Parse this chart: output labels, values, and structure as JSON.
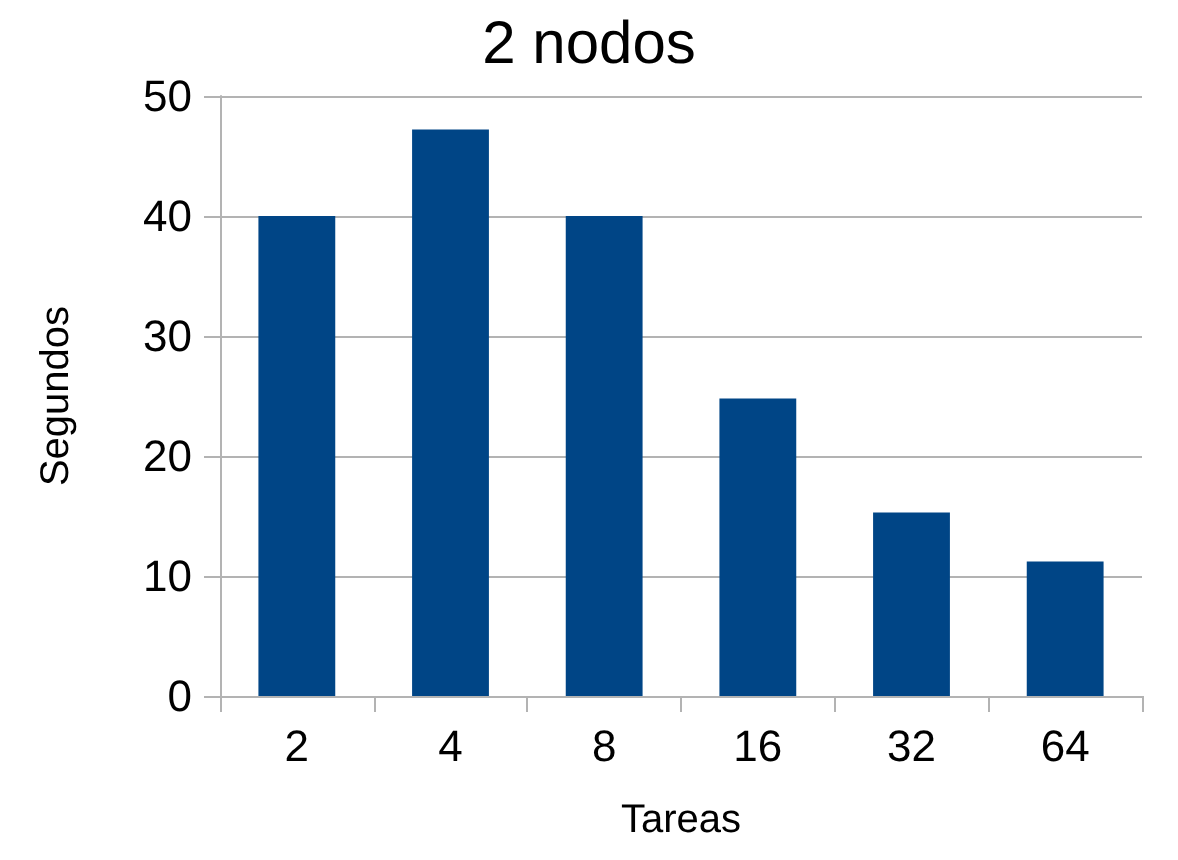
{
  "chart_data": {
    "type": "bar",
    "title": "2 nodos",
    "xlabel": "Tareas",
    "ylabel": "Segundos",
    "categories": [
      "2",
      "4",
      "8",
      "16",
      "32",
      "64"
    ],
    "values": [
      40,
      47.2,
      40,
      24.8,
      15.3,
      11.2
    ],
    "color": "#004586",
    "ylim": [
      0,
      50
    ],
    "yticks": [
      0,
      10,
      20,
      30,
      40,
      50
    ],
    "grid": "y"
  }
}
